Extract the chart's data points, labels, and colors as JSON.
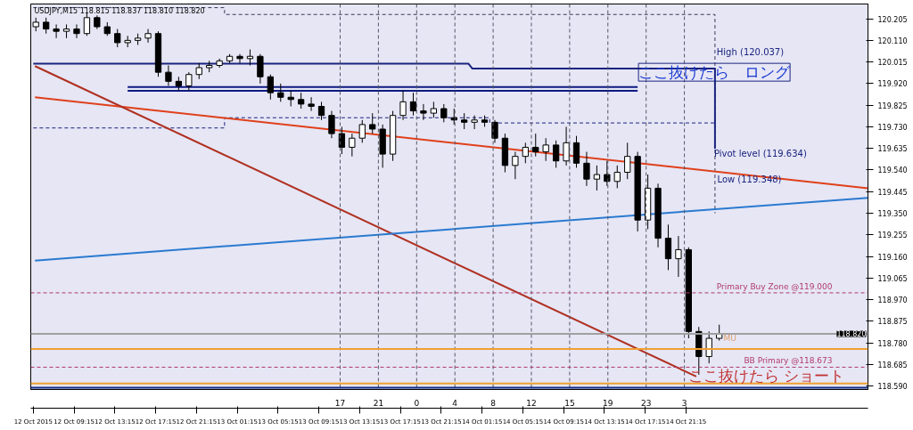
{
  "chart_data": {
    "type": "candlestick",
    "title": "USDJPY,M15  118.815 118.837 118.810 118.820",
    "color": "#000000",
    "x": [
      "2015-10-12T05:30",
      "2015-10-12T06:30",
      "2015-10-12T07:30",
      "2015-10-12T08:30",
      "2015-10-12T09:30",
      "2015-10-12T10:30",
      "2015-10-12T11:30",
      "2015-10-12T12:30",
      "2015-10-12T13:30",
      "2015-10-12T14:30",
      "2015-10-12T15:30",
      "2015-10-12T16:30",
      "2015-10-12T17:30",
      "2015-10-12T18:30",
      "2015-10-12T19:30",
      "2015-10-12T20:30",
      "2015-10-12T21:30",
      "2015-10-12T22:30",
      "2015-10-12T23:30",
      "2015-10-13T00:30",
      "2015-10-13T01:30",
      "2015-10-13T02:30",
      "2015-10-13T03:30",
      "2015-10-13T04:30",
      "2015-10-13T05:30",
      "2015-10-13T06:30",
      "2015-10-13T07:30",
      "2015-10-13T08:30",
      "2015-10-13T09:30",
      "2015-10-13T10:30",
      "2015-10-13T11:30",
      "2015-10-13T12:30",
      "2015-10-13T13:30",
      "2015-10-13T14:30",
      "2015-10-13T15:30",
      "2015-10-13T16:30",
      "2015-10-13T17:30",
      "2015-10-13T18:30",
      "2015-10-13T19:30",
      "2015-10-13T20:30",
      "2015-10-13T21:30",
      "2015-10-13T22:30",
      "2015-10-13T23:30",
      "2015-10-14T00:30",
      "2015-10-14T01:30",
      "2015-10-14T02:30",
      "2015-10-14T03:30",
      "2015-10-14T04:30",
      "2015-10-14T05:30",
      "2015-10-14T06:30",
      "2015-10-14T07:30",
      "2015-10-14T08:30",
      "2015-10-14T09:30",
      "2015-10-14T10:30",
      "2015-10-14T11:30",
      "2015-10-14T12:30",
      "2015-10-14T13:30",
      "2015-10-14T14:30",
      "2015-10-14T15:30",
      "2015-10-14T16:30",
      "2015-10-14T17:30",
      "2015-10-14T18:30",
      "2015-10-14T19:30",
      "2015-10-14T20:30",
      "2015-10-14T21:30",
      "2015-10-14T22:30",
      "2015-10-14T23:30",
      "2015-10-15T00:30"
    ],
    "ohlc": [
      [
        120.17,
        120.21,
        120.15,
        120.19
      ],
      [
        120.19,
        120.21,
        120.14,
        120.16
      ],
      [
        120.16,
        120.18,
        120.12,
        120.15
      ],
      [
        120.15,
        120.18,
        120.12,
        120.16
      ],
      [
        120.16,
        120.18,
        120.12,
        120.14
      ],
      [
        120.14,
        120.23,
        120.13,
        120.21
      ],
      [
        120.21,
        120.22,
        120.16,
        120.17
      ],
      [
        120.17,
        120.19,
        120.13,
        120.14
      ],
      [
        120.14,
        120.16,
        120.08,
        120.1
      ],
      [
        120.1,
        120.13,
        120.08,
        120.11
      ],
      [
        120.11,
        120.14,
        120.09,
        120.12
      ],
      [
        120.12,
        120.16,
        120.1,
        120.14
      ],
      [
        120.14,
        120.15,
        119.95,
        119.97
      ],
      [
        119.97,
        120.0,
        119.91,
        119.93
      ],
      [
        119.93,
        119.95,
        119.89,
        119.91
      ],
      [
        119.91,
        119.97,
        119.89,
        119.96
      ],
      [
        119.96,
        120.01,
        119.94,
        119.99
      ],
      [
        119.99,
        120.02,
        119.97,
        120.0
      ],
      [
        120.0,
        120.03,
        119.99,
        120.02
      ],
      [
        120.02,
        120.05,
        120.01,
        120.04
      ],
      [
        120.04,
        120.05,
        120.01,
        120.03
      ],
      [
        120.03,
        120.07,
        120.0,
        120.04
      ],
      [
        120.04,
        120.05,
        119.92,
        119.95
      ],
      [
        119.95,
        119.96,
        119.85,
        119.88
      ],
      [
        119.88,
        119.92,
        119.84,
        119.86
      ],
      [
        119.86,
        119.89,
        119.82,
        119.85
      ],
      [
        119.85,
        119.88,
        119.81,
        119.83
      ],
      [
        119.83,
        119.86,
        119.8,
        119.82
      ],
      [
        119.82,
        119.84,
        119.76,
        119.78
      ],
      [
        119.78,
        119.8,
        119.68,
        119.7
      ],
      [
        119.7,
        119.73,
        119.61,
        119.64
      ],
      [
        119.64,
        119.7,
        119.6,
        119.68
      ],
      [
        119.68,
        119.76,
        119.66,
        119.74
      ],
      [
        119.74,
        119.79,
        119.7,
        119.72
      ],
      [
        119.72,
        119.74,
        119.55,
        119.61
      ],
      [
        119.61,
        119.8,
        119.58,
        119.78
      ],
      [
        119.78,
        119.89,
        119.76,
        119.84
      ],
      [
        119.84,
        119.88,
        119.78,
        119.8
      ],
      [
        119.8,
        119.83,
        119.76,
        119.79
      ],
      [
        119.79,
        119.84,
        119.77,
        119.81
      ],
      [
        119.81,
        119.83,
        119.75,
        119.77
      ],
      [
        119.77,
        119.81,
        119.74,
        119.76
      ],
      [
        119.76,
        119.79,
        119.72,
        119.75
      ],
      [
        119.75,
        119.78,
        119.72,
        119.76
      ],
      [
        119.76,
        119.78,
        119.73,
        119.75
      ],
      [
        119.75,
        119.76,
        119.66,
        119.68
      ],
      [
        119.68,
        119.7,
        119.53,
        119.56
      ],
      [
        119.56,
        119.62,
        119.5,
        119.6
      ],
      [
        119.6,
        119.66,
        119.57,
        119.64
      ],
      [
        119.64,
        119.7,
        119.6,
        119.62
      ],
      [
        119.62,
        119.68,
        119.58,
        119.65
      ],
      [
        119.65,
        119.67,
        119.55,
        119.58
      ],
      [
        119.58,
        119.73,
        119.56,
        119.66
      ],
      [
        119.66,
        119.69,
        119.55,
        119.57
      ],
      [
        119.57,
        119.62,
        119.47,
        119.5
      ],
      [
        119.5,
        119.56,
        119.45,
        119.52
      ],
      [
        119.52,
        119.58,
        119.47,
        119.49
      ],
      [
        119.49,
        119.56,
        119.46,
        119.53
      ],
      [
        119.53,
        119.66,
        119.5,
        119.6
      ],
      [
        119.6,
        119.62,
        119.27,
        119.32
      ],
      [
        119.32,
        119.52,
        119.28,
        119.46
      ],
      [
        119.46,
        119.48,
        119.2,
        119.24
      ],
      [
        119.24,
        119.3,
        119.1,
        119.15
      ],
      [
        119.15,
        119.25,
        119.07,
        119.19
      ],
      [
        119.19,
        119.2,
        118.8,
        118.83
      ],
      [
        118.83,
        118.85,
        118.64,
        118.72
      ],
      [
        118.72,
        118.83,
        118.69,
        118.8
      ],
      [
        118.8,
        118.86,
        118.79,
        118.82
      ]
    ],
    "series": [
      {
        "type": "line",
        "color": "#3a3a5a",
        "line_style": "dashed",
        "x": [
          "2015-10-12T05:15",
          "2015-10-13T00:00",
          "2015-10-13T00:00",
          "2015-10-15T00:05",
          "2015-10-15T00:05"
        ],
        "values": [
          120.254,
          120.254,
          120.224,
          120.224,
          119.35
        ]
      },
      {
        "type": "line",
        "color": "#1a237e",
        "line_style": "solid",
        "x": [
          "2015-10-12T05:15",
          "2015-10-13T23:54",
          "2015-10-14T00:18",
          "2015-10-15T00:05",
          "2015-10-15T00:05"
        ],
        "values": [
          120.008,
          120.008,
          119.986,
          119.986,
          119.634
        ]
      },
      {
        "type": "line",
        "color": "#1a237e",
        "line_style": "dashed",
        "x": [
          "2015-10-12T05:15",
          "2015-10-13T00:00",
          "2015-10-13T00:00",
          "2015-10-14T02:00",
          "2015-10-14T02:00",
          "2015-10-15T00:05"
        ],
        "values": [
          119.725,
          119.725,
          119.77,
          119.77,
          119.747,
          119.747
        ]
      },
      {
        "type": "line",
        "color": "#0d1a80",
        "line_style": "solid",
        "x": [
          "2015-10-12T14:30",
          "2015-10-14T16:30"
        ],
        "values": [
          119.905,
          119.905
        ]
      },
      {
        "type": "line",
        "color": "#0d1a80",
        "line_style": "solid",
        "x": [
          "2015-10-12T14:30",
          "2015-10-14T16:30"
        ],
        "values": [
          119.888,
          119.888
        ]
      },
      {
        "type": "line",
        "color": "#e0401a",
        "line_style": "solid",
        "x": [
          "2015-10-12T05:25",
          "2015-10-15T15:05"
        ],
        "values": [
          119.86,
          119.46
        ]
      },
      {
        "type": "line",
        "color": "#b03020",
        "line_style": "solid",
        "x": [
          "2015-10-12T05:25",
          "2015-10-14T22:15"
        ],
        "values": [
          119.997,
          118.632
        ]
      },
      {
        "type": "line",
        "color": "#2a7ad0",
        "line_style": "solid",
        "x": [
          "2015-10-12T05:25",
          "2015-10-15T15:05"
        ],
        "values": [
          119.142,
          119.418
        ]
      }
    ],
    "ref_lines": [
      {
        "axis": "x",
        "value": "2015-10-13T11:20",
        "color": "#555566",
        "line_style": "dashed"
      },
      {
        "axis": "x",
        "value": "2015-10-13T15:05",
        "color": "#555566",
        "line_style": "dashed"
      },
      {
        "axis": "x",
        "value": "2015-10-13T18:50",
        "color": "#555566",
        "line_style": "dashed"
      },
      {
        "axis": "x",
        "value": "2015-10-13T22:35",
        "color": "#555566",
        "line_style": "dashed"
      },
      {
        "axis": "x",
        "value": "2015-10-14T02:20",
        "color": "#555566",
        "line_style": "dashed"
      },
      {
        "axis": "x",
        "value": "2015-10-14T06:05",
        "color": "#555566",
        "line_style": "dashed"
      },
      {
        "axis": "x",
        "value": "2015-10-14T09:50",
        "color": "#555566",
        "line_style": "dashed"
      },
      {
        "axis": "x",
        "value": "2015-10-14T13:35",
        "color": "#555566",
        "line_style": "dashed"
      },
      {
        "axis": "x",
        "value": "2015-10-14T17:20",
        "color": "#555566",
        "line_style": "dashed"
      },
      {
        "axis": "x",
        "value": "2015-10-14T21:05",
        "color": "#555566",
        "line_style": "dashed"
      },
      {
        "axis": "y",
        "value": 119.0,
        "label": "Primary Buy Zone @119.000",
        "color": "#b03a6a",
        "line_style": "dashed"
      },
      {
        "axis": "y",
        "value": 118.673,
        "label": "BB Primary @118.673",
        "color": "#b03a6a",
        "line_style": "dashed"
      },
      {
        "axis": "y",
        "value": 118.82,
        "label": "118.820",
        "color": "#a0a0a0",
        "line_style": "solid"
      },
      {
        "axis": "y",
        "value": 118.753,
        "color": "#f0a030",
        "line_style": "solid"
      },
      {
        "axis": "y",
        "value": 118.601,
        "color": "#f0a030",
        "line_style": "solid"
      },
      {
        "axis": "y",
        "value": 118.583,
        "color": "#102a80",
        "line_style": "solid"
      }
    ],
    "annotations": [
      {
        "text": "High (120.037)",
        "x": "2015-10-15T00:15",
        "y": 120.037
      },
      {
        "text": "Pivot level (119.634)",
        "x": "2015-10-15T00:00",
        "y": 119.611
      },
      "Low (119.348)",
      {
        "text": "ここ抜けたら　ロング",
        "x": "2015-10-14T16:35",
        "y": 119.97
      },
      "ここ抜けたら ショート",
      {
        "text": "MU",
        "x": "2015-10-15T00:55",
        "y": 118.8
      }
    ],
    "xlim": [
      "2015-10-12T05:00",
      "2015-10-15T15:05"
    ],
    "ylim": [
      118.575,
      120.27
    ],
    "xticks": [
      {
        "value": "2015-10-12T05:15",
        "label": "12 Oct 2015"
      },
      {
        "value": "2015-10-12T09:15",
        "label": "12 Oct 09:15"
      },
      {
        "value": "2015-10-12T13:15",
        "label": "12 Oct 13:15"
      },
      {
        "value": "2015-10-12T17:15",
        "label": "12 Oct 17:15"
      },
      {
        "value": "2015-10-12T21:15",
        "label": "12 Oct 21:15"
      },
      {
        "value": "2015-10-13T01:15",
        "label": "13 Oct 01:15"
      },
      {
        "value": "2015-10-13T05:15",
        "label": "13 Oct 05:15"
      },
      {
        "value": "2015-10-13T09:15",
        "label": "13 Oct 09:15"
      },
      {
        "value": "2015-10-13T13:15",
        "label": "13 Oct 13:15"
      },
      {
        "value": "2015-10-13T17:15",
        "label": "13 Oct 17:15"
      },
      {
        "value": "2015-10-13T21:15",
        "label": "13 Oct 21:15"
      },
      {
        "value": "2015-10-14T01:15",
        "label": "14 Oct 01:15"
      },
      {
        "value": "2015-10-14T05:15",
        "label": "14 Oct 05:15"
      },
      {
        "value": "2015-10-14T09:15",
        "label": "14 Oct 09:15"
      },
      {
        "value": "2015-10-14T13:15",
        "label": "14 Oct 13:15"
      },
      {
        "value": "2015-10-14T17:15",
        "label": "14 Oct 17:15"
      },
      {
        "value": "2015-10-14T21:15",
        "label": "14 Oct 21:15"
      }
    ],
    "x2lim": [
      "2015-10-12T05:00",
      "2015-10-15T15:05"
    ],
    "x2ticks": [
      {
        "value": "2015-10-13T11:20",
        "label": "17"
      },
      {
        "value": "2015-10-13T15:05",
        "label": "21"
      },
      {
        "value": "2015-10-13T18:50",
        "label": "0"
      },
      {
        "value": "2015-10-13T22:35",
        "label": "4"
      },
      {
        "value": "2015-10-14T02:20",
        "label": "8"
      },
      {
        "value": "2015-10-14T06:05",
        "label": "12"
      },
      {
        "value": "2015-10-14T09:50",
        "label": "15"
      },
      {
        "value": "2015-10-14T13:35",
        "label": "19"
      },
      {
        "value": "2015-10-14T17:20",
        "label": "23"
      },
      {
        "value": "2015-10-14T21:05",
        "label": "3"
      }
    ],
    "yticks": [
      {
        "value": 120.205,
        "label": "120.205"
      },
      {
        "value": 120.11,
        "label": "120.110"
      },
      {
        "value": 120.015,
        "label": "120.015"
      },
      {
        "value": 119.92,
        "label": "119.920"
      },
      {
        "value": 119.825,
        "label": "119.825"
      },
      {
        "value": 119.73,
        "label": "119.730"
      },
      {
        "value": 119.635,
        "label": "119.635"
      },
      {
        "value": 119.54,
        "label": "119.540"
      },
      {
        "value": 119.445,
        "label": "119.445"
      },
      {
        "value": 119.35,
        "label": "119.350"
      },
      {
        "value": 119.255,
        "label": "119.255"
      },
      {
        "value": 119.16,
        "label": "119.160"
      },
      {
        "value": 119.065,
        "label": "119.065"
      },
      {
        "value": 118.97,
        "label": "118.970"
      },
      {
        "value": 118.875,
        "label": "118.875"
      },
      {
        "value": 118.78,
        "label": "118.780"
      },
      {
        "value": 118.685,
        "label": "118.685"
      },
      {
        "value": 118.59,
        "label": "118.590"
      }
    ],
    "grid": false
  }
}
